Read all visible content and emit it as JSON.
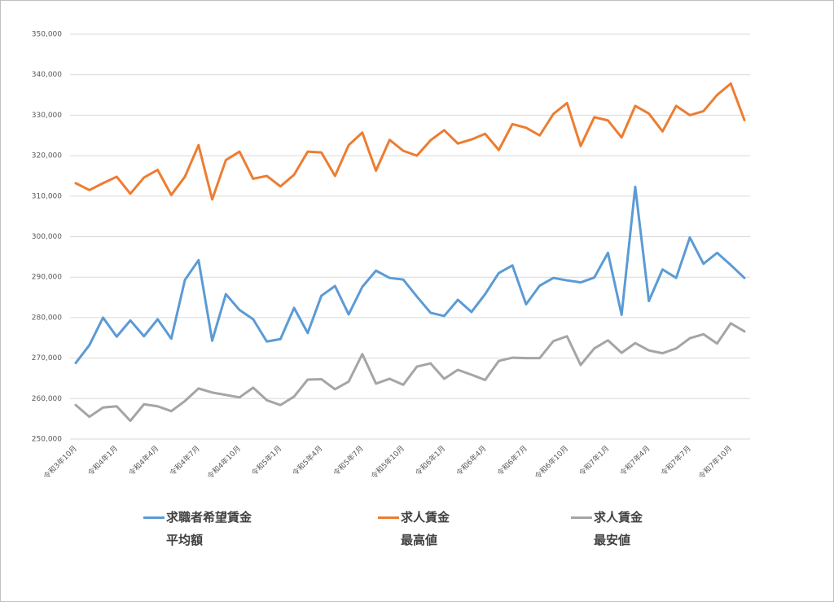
{
  "chart_data": {
    "type": "line",
    "categories": [
      "令和3年10月",
      null,
      null,
      "令和4年1月",
      null,
      null,
      "令和4年4月",
      null,
      null,
      "令和4年7月",
      null,
      null,
      "令和4年10月",
      null,
      null,
      "令和5年1月",
      null,
      null,
      "令和5年4月",
      null,
      null,
      "令和5年7月",
      null,
      null,
      "令和5年10月",
      null,
      null,
      "令和6年1月",
      null,
      null,
      "令和6年4月",
      null,
      null,
      "令和6年7月",
      null,
      null,
      "令和6年10月",
      null,
      null,
      "令和7年1月",
      null,
      null,
      "令和7年4月",
      null,
      null,
      "令和7年7月",
      null,
      null,
      "令和7年10月",
      null
    ],
    "series": [
      {
        "name": "求職者希望賃金\n平均額",
        "color": "#5b9bd5",
        "values": [
          268800,
          273200,
          280000,
          275300,
          279300,
          275400,
          279600,
          274800,
          289300,
          294200,
          274300,
          285800,
          281900,
          279600,
          274100,
          274700,
          282400,
          276200,
          285400,
          287800,
          280800,
          287600,
          291600,
          289800,
          289400,
          285200,
          281200,
          280400,
          284400,
          281400,
          285800,
          291000,
          292900,
          283300,
          287900,
          289800,
          289200,
          288700,
          289900,
          296000,
          280700,
          312300,
          284100,
          291900,
          289800,
          299800,
          293300,
          296000,
          293000,
          289800
        ]
      },
      {
        "name": "求人賃金\n最高値",
        "color": "#ed7d31",
        "values": [
          313200,
          311500,
          313200,
          314800,
          310600,
          314600,
          316500,
          310300,
          314800,
          322600,
          309200,
          318900,
          321000,
          314300,
          315000,
          312400,
          315300,
          321000,
          320800,
          315000,
          322600,
          325700,
          316300,
          323900,
          321200,
          320000,
          323800,
          326300,
          323000,
          324000,
          325400,
          321400,
          327800,
          326900,
          325000,
          330300,
          333000,
          322400,
          329500,
          328700,
          324500,
          332300,
          330400,
          326000,
          332300,
          330000,
          331000,
          335000,
          337800,
          328800
        ]
      },
      {
        "name": "求人賃金\n最安値",
        "color": "#a5a5a5",
        "values": [
          258400,
          255500,
          257800,
          258100,
          254500,
          258600,
          258100,
          256900,
          259400,
          262500,
          261500,
          260900,
          260300,
          262700,
          259600,
          258400,
          260500,
          264700,
          264800,
          262300,
          264200,
          271000,
          263700,
          264900,
          263400,
          267900,
          268700,
          264900,
          267100,
          265900,
          264600,
          269300,
          270100,
          270000,
          270000,
          274200,
          275400,
          268300,
          272400,
          274400,
          271300,
          273700,
          271900,
          271200,
          272400,
          274900,
          275900,
          273600,
          278600,
          276600
        ]
      }
    ],
    "ylim": [
      250000,
      350000
    ],
    "yticks": [
      {
        "value": 250000,
        "label": "250,000"
      },
      {
        "value": 260000,
        "label": "260,000"
      },
      {
        "value": 270000,
        "label": "270,000"
      },
      {
        "value": 280000,
        "label": "280,000"
      },
      {
        "value": 290000,
        "label": "290,000"
      },
      {
        "value": 300000,
        "label": "300,000"
      },
      {
        "value": 310000,
        "label": "310,000"
      },
      {
        "value": 320000,
        "label": "320,000"
      },
      {
        "value": 330000,
        "label": "330,000"
      },
      {
        "value": 340000,
        "label": "340,000"
      },
      {
        "value": 350000,
        "label": "350,000"
      }
    ],
    "grid": true,
    "legend": "bottom"
  }
}
